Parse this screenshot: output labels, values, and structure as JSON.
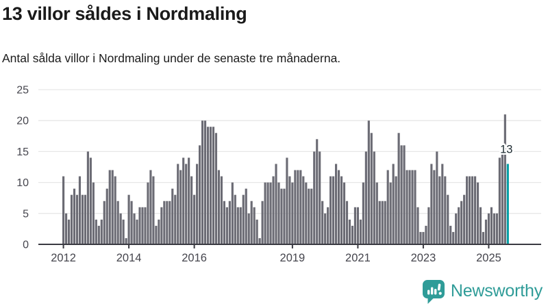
{
  "header": {
    "title": "13 villor såldes i Nordmaling",
    "subtitle": "Antal sålda villor i Nordmaling under de senaste tre månaderna."
  },
  "chart_data": {
    "type": "bar",
    "title": "13 villor såldes i Nordmaling",
    "subtitle": "Antal sålda villor i Nordmaling under de senaste tre månaderna.",
    "frequency": "monthly",
    "x_start": "2012-01",
    "x_end": "2025-08",
    "ylim": [
      0,
      25
    ],
    "yticks": [
      0,
      5,
      10,
      15,
      20,
      25
    ],
    "grid": true,
    "legend": false,
    "xticks": [
      {
        "label": "2012",
        "month_index": 0
      },
      {
        "label": "2014",
        "month_index": 24
      },
      {
        "label": "2016",
        "month_index": 48
      },
      {
        "label": "2019",
        "month_index": 84
      },
      {
        "label": "2021",
        "month_index": 108
      },
      {
        "label": "2023",
        "month_index": 132
      },
      {
        "label": "2025",
        "month_index": 156
      }
    ],
    "values": [
      11,
      5,
      4,
      8,
      9,
      8,
      11,
      8,
      8,
      15,
      14,
      10,
      4,
      3,
      4,
      7,
      9,
      12,
      12,
      11,
      7,
      5,
      4,
      1,
      8,
      7,
      5,
      4,
      6,
      6,
      6,
      10,
      12,
      11,
      3,
      4,
      6,
      7,
      7,
      7,
      9,
      8,
      13,
      12,
      14,
      13,
      14,
      11,
      8,
      13,
      16,
      20,
      20,
      19,
      19,
      19,
      18,
      12,
      11,
      7,
      6,
      7,
      10,
      8,
      6,
      6,
      8,
      9,
      5,
      7,
      6,
      4,
      1,
      7,
      10,
      10,
      10,
      11,
      13,
      10,
      9,
      9,
      14,
      11,
      10,
      12,
      12,
      12,
      11,
      10,
      9,
      9,
      15,
      17,
      15,
      7,
      5,
      6,
      11,
      11,
      13,
      12,
      11,
      10,
      7,
      4,
      3,
      6,
      6,
      4,
      10,
      15,
      20,
      18,
      15,
      10,
      7,
      7,
      7,
      12,
      10,
      13,
      11,
      18,
      16,
      16,
      12,
      12,
      12,
      12,
      6,
      2,
      2,
      3,
      6,
      13,
      12,
      15,
      11,
      13,
      11,
      8,
      3,
      2,
      5,
      6,
      7,
      8,
      11,
      11,
      11,
      11,
      10,
      6,
      2,
      4,
      5,
      6,
      5,
      5,
      14,
      15,
      21,
      13
    ],
    "highlight": {
      "index": 163,
      "value": 13,
      "label": "13"
    },
    "colors": {
      "bar": "#6b6b74",
      "highlight": "#009ea4",
      "gridline": "#e7e7e7",
      "axis": "#3a3a42",
      "tick_text": "#45454d",
      "label_text": "#1d2b31",
      "label_halo": "#ffffff"
    }
  },
  "footer": {
    "brand": "Newsworthy",
    "brand_color": "#2f9c98"
  }
}
